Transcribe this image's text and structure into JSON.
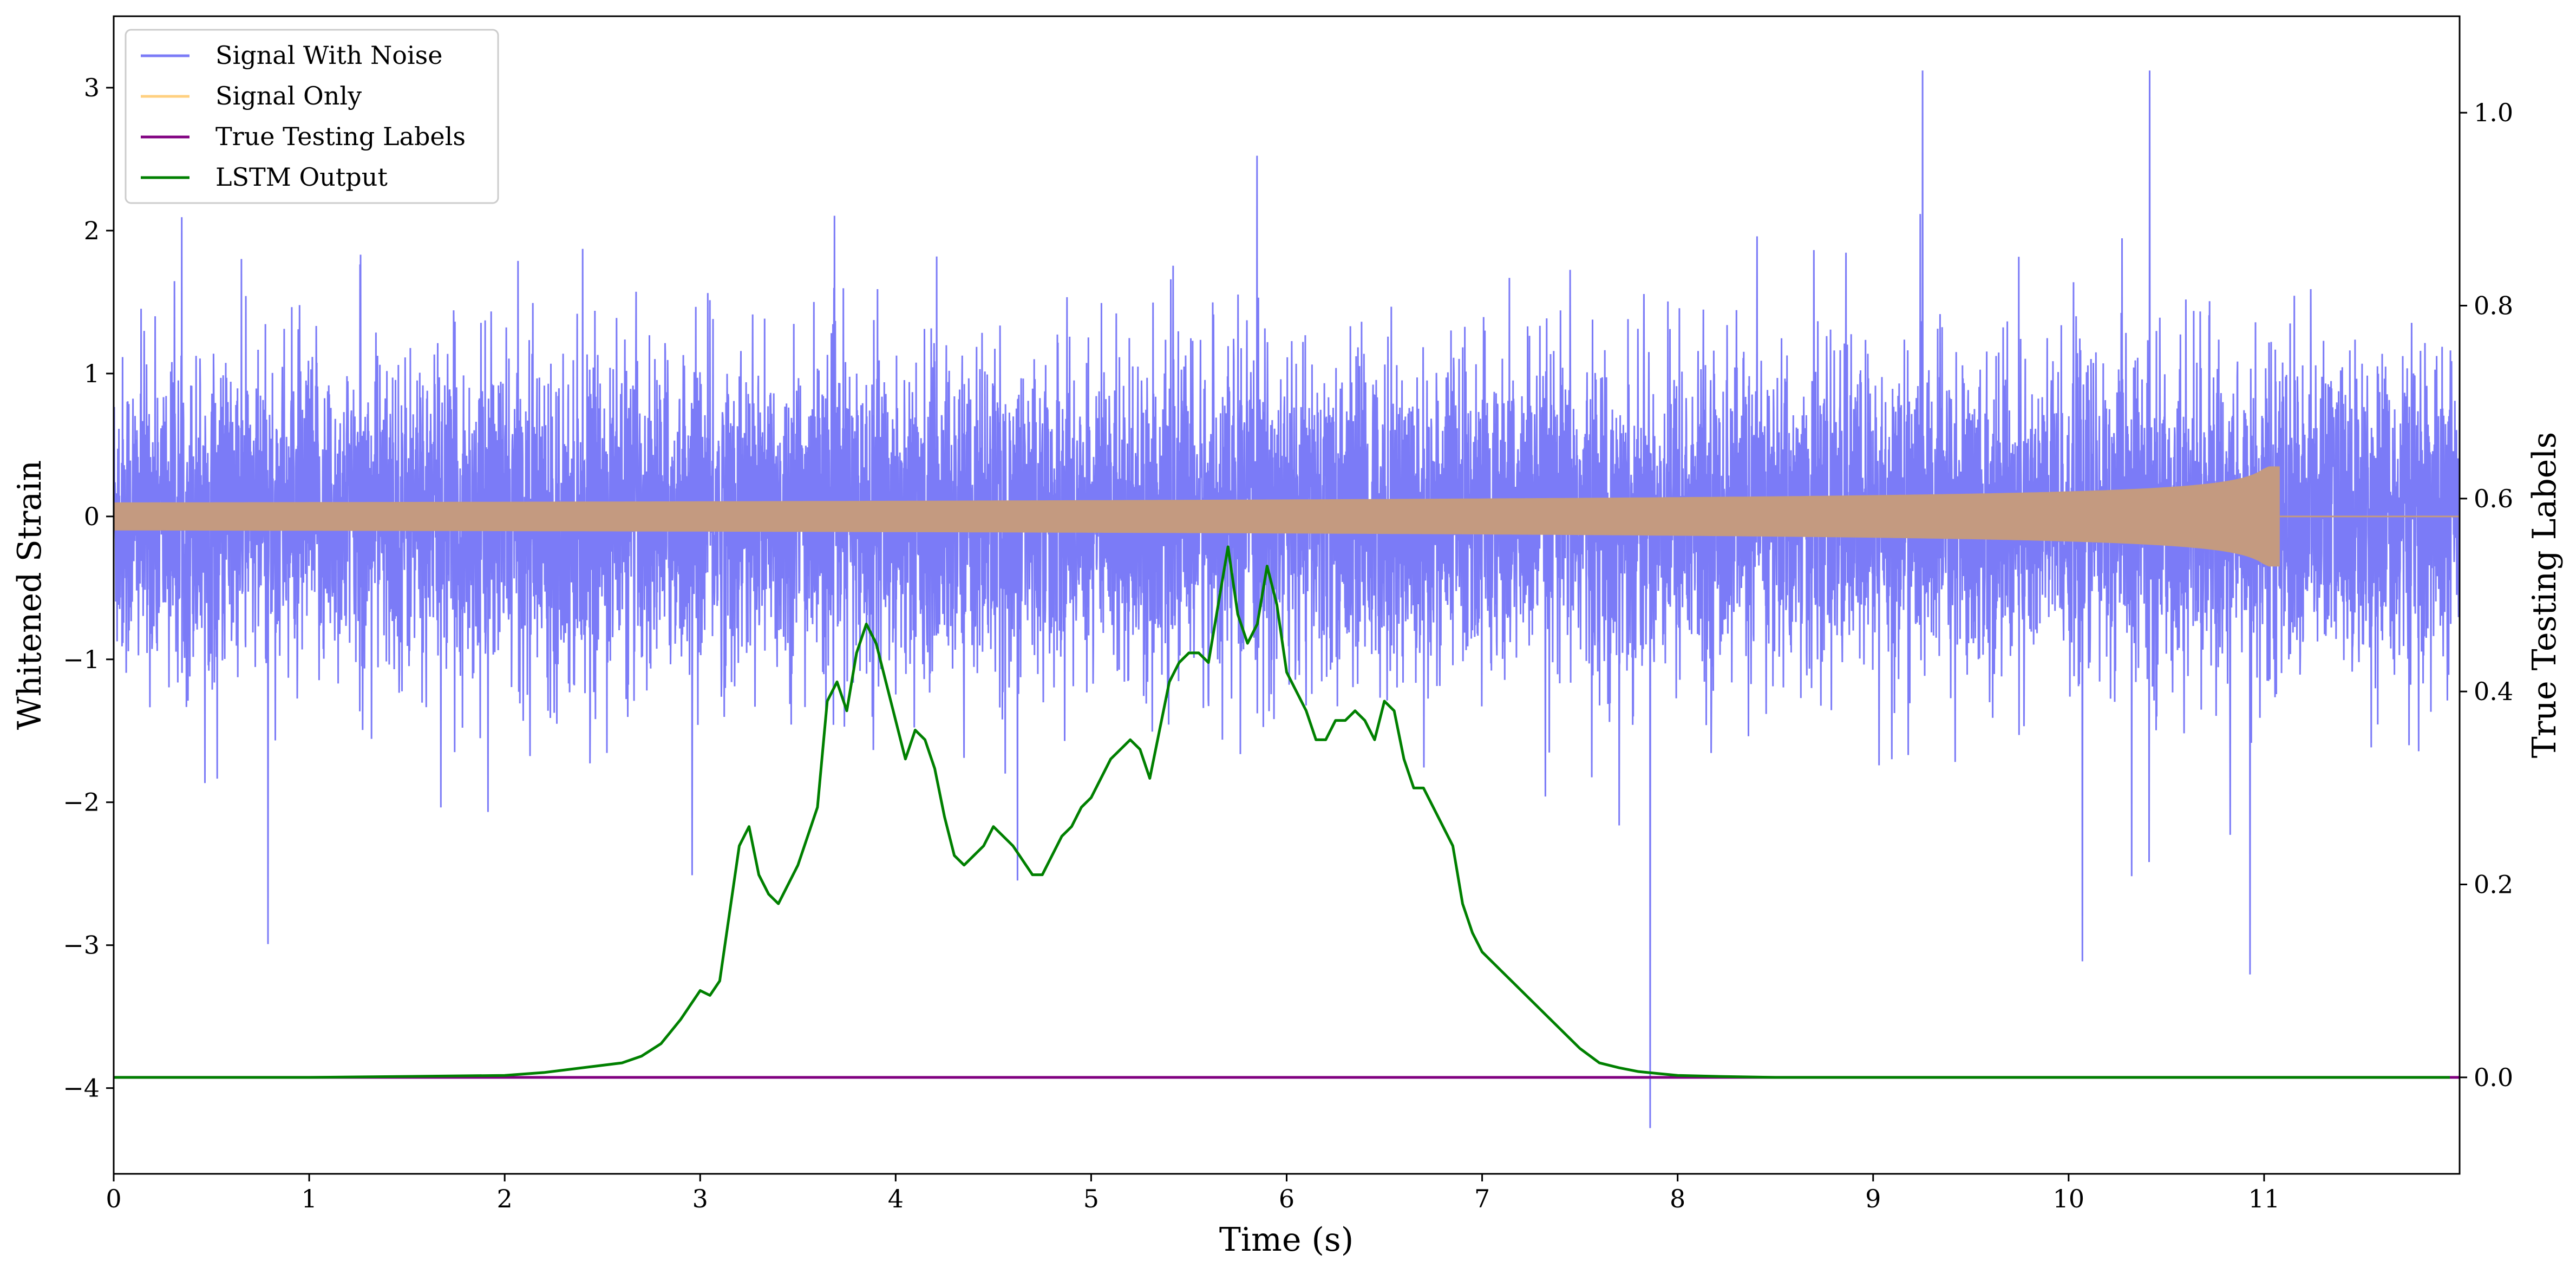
{
  "chart_data": {
    "type": "line",
    "xlabel": "Time (s)",
    "ylabel": "Whitened Strain",
    "ylabel_right": "True Testing Labels",
    "xlim": [
      0,
      12
    ],
    "ylim": [
      -4.6,
      3.5
    ],
    "ylim_right": [
      -0.1,
      1.1
    ],
    "xticks": [
      "0",
      "1",
      "2",
      "3",
      "4",
      "5",
      "6",
      "7",
      "8",
      "9",
      "10",
      "11"
    ],
    "yticks": [
      "−4",
      "−3",
      "−2",
      "−1",
      "0",
      "1",
      "2",
      "3"
    ],
    "yticks_right": [
      "0.0",
      "0.2",
      "0.4",
      "0.6",
      "0.8",
      "1.0"
    ],
    "legend_position": "upper-left",
    "legend": [
      {
        "name": "Signal With Noise",
        "color": "#7b7bf7"
      },
      {
        "name": "Signal Only",
        "color": "#ffd080"
      },
      {
        "name": "True Testing Labels",
        "color": "#800080"
      },
      {
        "name": "LSTM Output",
        "color": "#008000"
      }
    ],
    "series": [
      {
        "name": "Signal With Noise",
        "axis": "left",
        "color": "#7b7bf7",
        "description_values": {
          "x_range": [
            0,
            12
          ],
          "typical_amplitude": 1.2,
          "min": -4.28,
          "max": 3.12
        }
      },
      {
        "name": "Signal Only",
        "axis": "left",
        "color": "#c49a80",
        "description_values": {
          "x_range": [
            0,
            12
          ],
          "chirp_end_x": 11.08,
          "peak_amplitude": 0.35
        }
      },
      {
        "name": "True Testing Labels",
        "axis": "right",
        "color": "#800080",
        "x": [
          0,
          12
        ],
        "y": [
          0.0,
          0.0
        ]
      },
      {
        "name": "LSTM Output",
        "axis": "right",
        "color": "#008000",
        "x": [
          0,
          1,
          2,
          2.2,
          2.4,
          2.6,
          2.7,
          2.8,
          2.9,
          3.0,
          3.05,
          3.1,
          3.15,
          3.2,
          3.25,
          3.3,
          3.35,
          3.4,
          3.5,
          3.6,
          3.65,
          3.7,
          3.75,
          3.8,
          3.85,
          3.9,
          3.95,
          4.0,
          4.05,
          4.1,
          4.15,
          4.2,
          4.25,
          4.3,
          4.35,
          4.4,
          4.45,
          4.5,
          4.6,
          4.7,
          4.75,
          4.8,
          4.85,
          4.9,
          4.95,
          5.0,
          5.1,
          5.2,
          5.25,
          5.3,
          5.35,
          5.4,
          5.45,
          5.5,
          5.55,
          5.6,
          5.65,
          5.7,
          5.75,
          5.8,
          5.85,
          5.9,
          5.95,
          6.0,
          6.05,
          6.1,
          6.15,
          6.2,
          6.25,
          6.3,
          6.35,
          6.4,
          6.45,
          6.5,
          6.55,
          6.6,
          6.65,
          6.7,
          6.75,
          6.8,
          6.85,
          6.9,
          6.95,
          7.0,
          7.1,
          7.2,
          7.3,
          7.4,
          7.5,
          7.6,
          7.7,
          7.8,
          7.9,
          8.0,
          8.2,
          8.5,
          9.0,
          10.0,
          12.0
        ],
        "y": [
          0.0,
          0.0,
          0.002,
          0.005,
          0.01,
          0.015,
          0.022,
          0.035,
          0.06,
          0.09,
          0.085,
          0.1,
          0.17,
          0.24,
          0.26,
          0.21,
          0.19,
          0.18,
          0.22,
          0.28,
          0.39,
          0.41,
          0.38,
          0.44,
          0.47,
          0.45,
          0.41,
          0.37,
          0.33,
          0.36,
          0.35,
          0.32,
          0.27,
          0.23,
          0.22,
          0.23,
          0.24,
          0.26,
          0.24,
          0.21,
          0.21,
          0.23,
          0.25,
          0.26,
          0.28,
          0.29,
          0.33,
          0.35,
          0.34,
          0.31,
          0.36,
          0.41,
          0.43,
          0.44,
          0.44,
          0.43,
          0.49,
          0.55,
          0.48,
          0.45,
          0.47,
          0.53,
          0.49,
          0.42,
          0.4,
          0.38,
          0.35,
          0.35,
          0.37,
          0.37,
          0.38,
          0.37,
          0.35,
          0.39,
          0.38,
          0.33,
          0.3,
          0.3,
          0.28,
          0.26,
          0.24,
          0.18,
          0.15,
          0.13,
          0.11,
          0.09,
          0.07,
          0.05,
          0.03,
          0.015,
          0.01,
          0.006,
          0.004,
          0.002,
          0.001,
          0.0,
          0.0,
          0.0,
          0.0
        ]
      }
    ]
  }
}
